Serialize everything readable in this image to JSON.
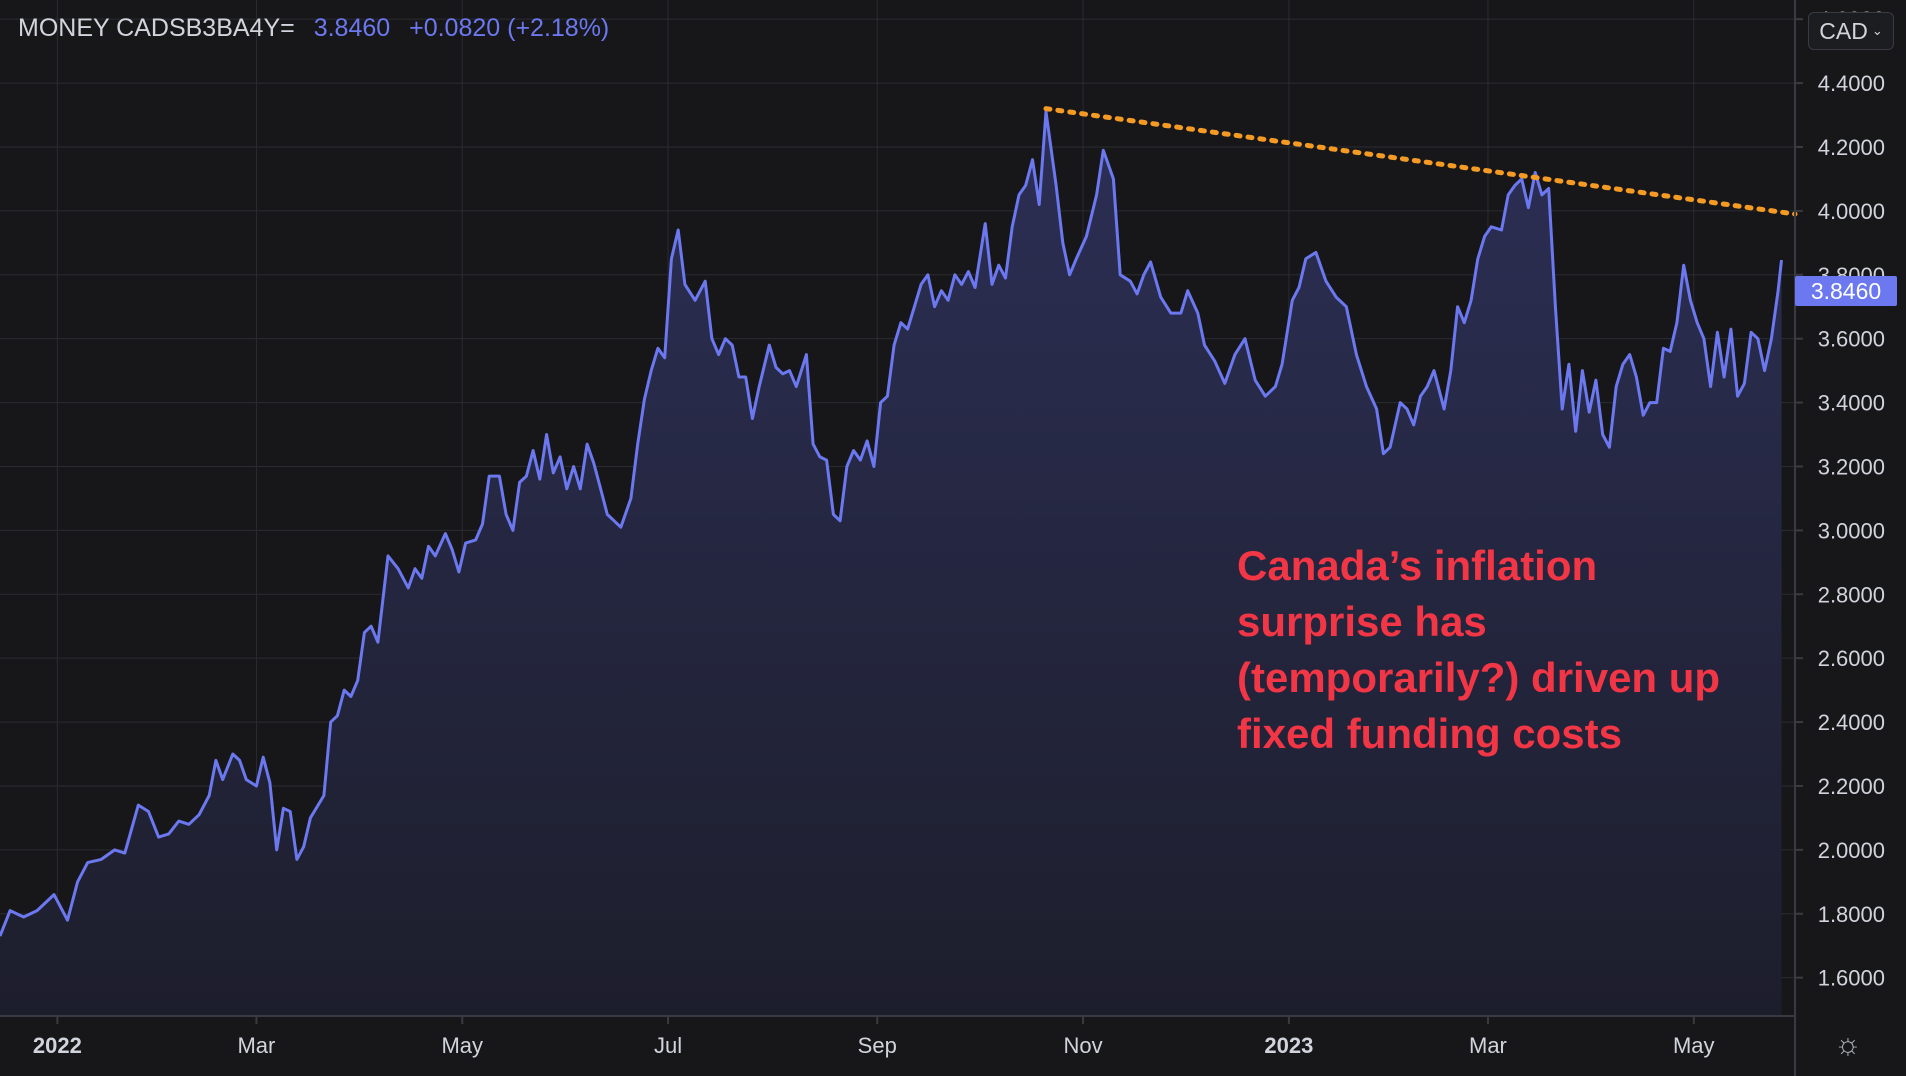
{
  "header": {
    "symbol": "MONEY CADSB3BA4Y=",
    "last": "3.8460",
    "change": "+0.0820 (+2.18%)"
  },
  "currency_button": {
    "label": "CAD"
  },
  "price_badge": {
    "label": "3.8460"
  },
  "settings": {
    "icon": "settings-gear-icon"
  },
  "annotation": {
    "text": "Canada’s inflation surprise has (temporarily?) driven up fixed funding costs"
  },
  "colors": {
    "background": "#171719",
    "line": "#6b78f0",
    "area_top": "#2c2f55",
    "area_bottom": "#1d1e2c",
    "trend": "#f59a23",
    "annotation": "#f23645",
    "grid": "#2b2c31",
    "axis_text": "#d1d4dc"
  },
  "chart_data": {
    "type": "area",
    "x_start": "2021-12-15",
    "x_end": "2023-05-31",
    "ylim": [
      1.48,
      4.66
    ],
    "grid": true,
    "y_ticks": [
      "1.6000",
      "1.8000",
      "2.0000",
      "2.2000",
      "2.4000",
      "2.6000",
      "2.8000",
      "3.0000",
      "3.2000",
      "3.4000",
      "3.6000",
      "3.8000",
      "4.0000",
      "4.2000",
      "4.4000",
      "4.6000"
    ],
    "x_ticks": [
      {
        "date": "2022-01-01",
        "label": "2022"
      },
      {
        "date": "2022-03-01",
        "label": "Mar"
      },
      {
        "date": "2022-05-01",
        "label": "May"
      },
      {
        "date": "2022-07-01",
        "label": "Jul"
      },
      {
        "date": "2022-09-01",
        "label": "Sep"
      },
      {
        "date": "2022-11-01",
        "label": "Nov"
      },
      {
        "date": "2023-01-01",
        "label": "2023"
      },
      {
        "date": "2023-03-01",
        "label": "Mar"
      },
      {
        "date": "2023-05-01",
        "label": "May"
      }
    ],
    "series": [
      {
        "points": [
          [
            "2021-12-15",
            1.73
          ],
          [
            "2021-12-18",
            1.81
          ],
          [
            "2021-12-22",
            1.79
          ],
          [
            "2021-12-26",
            1.81
          ],
          [
            "2021-12-31",
            1.86
          ],
          [
            "2022-01-04",
            1.78
          ],
          [
            "2022-01-07",
            1.9
          ],
          [
            "2022-01-10",
            1.96
          ],
          [
            "2022-01-14",
            1.97
          ],
          [
            "2022-01-18",
            2.0
          ],
          [
            "2022-01-21",
            1.99
          ],
          [
            "2022-01-25",
            2.14
          ],
          [
            "2022-01-28",
            2.12
          ],
          [
            "2022-01-31",
            2.04
          ],
          [
            "2022-02-03",
            2.05
          ],
          [
            "2022-02-06",
            2.09
          ],
          [
            "2022-02-09",
            2.08
          ],
          [
            "2022-02-12",
            2.11
          ],
          [
            "2022-02-15",
            2.17
          ],
          [
            "2022-02-17",
            2.28
          ],
          [
            "2022-02-19",
            2.22
          ],
          [
            "2022-02-22",
            2.3
          ],
          [
            "2022-02-24",
            2.28
          ],
          [
            "2022-02-26",
            2.22
          ],
          [
            "2022-03-01",
            2.2
          ],
          [
            "2022-03-03",
            2.29
          ],
          [
            "2022-03-05",
            2.21
          ],
          [
            "2022-03-07",
            2.0
          ],
          [
            "2022-03-09",
            2.13
          ],
          [
            "2022-03-11",
            2.12
          ],
          [
            "2022-03-13",
            1.97
          ],
          [
            "2022-03-15",
            2.01
          ],
          [
            "2022-03-17",
            2.1
          ],
          [
            "2022-03-21",
            2.17
          ],
          [
            "2022-03-23",
            2.4
          ],
          [
            "2022-03-25",
            2.42
          ],
          [
            "2022-03-27",
            2.5
          ],
          [
            "2022-03-29",
            2.48
          ],
          [
            "2022-03-31",
            2.53
          ],
          [
            "2022-04-02",
            2.68
          ],
          [
            "2022-04-04",
            2.7
          ],
          [
            "2022-04-06",
            2.65
          ],
          [
            "2022-04-09",
            2.92
          ],
          [
            "2022-04-12",
            2.88
          ],
          [
            "2022-04-15",
            2.82
          ],
          [
            "2022-04-17",
            2.88
          ],
          [
            "2022-04-19",
            2.85
          ],
          [
            "2022-04-21",
            2.95
          ],
          [
            "2022-04-23",
            2.92
          ],
          [
            "2022-04-26",
            2.99
          ],
          [
            "2022-04-28",
            2.94
          ],
          [
            "2022-04-30",
            2.87
          ],
          [
            "2022-05-02",
            2.96
          ],
          [
            "2022-05-05",
            2.97
          ],
          [
            "2022-05-07",
            3.02
          ],
          [
            "2022-05-09",
            3.17
          ],
          [
            "2022-05-12",
            3.17
          ],
          [
            "2022-05-14",
            3.05
          ],
          [
            "2022-05-16",
            3.0
          ],
          [
            "2022-05-18",
            3.15
          ],
          [
            "2022-05-20",
            3.17
          ],
          [
            "2022-05-22",
            3.25
          ],
          [
            "2022-05-24",
            3.16
          ],
          [
            "2022-05-26",
            3.3
          ],
          [
            "2022-05-28",
            3.18
          ],
          [
            "2022-05-30",
            3.23
          ],
          [
            "2022-06-01",
            3.13
          ],
          [
            "2022-06-03",
            3.2
          ],
          [
            "2022-06-05",
            3.13
          ],
          [
            "2022-06-07",
            3.27
          ],
          [
            "2022-06-09",
            3.21
          ],
          [
            "2022-06-11",
            3.13
          ],
          [
            "2022-06-13",
            3.05
          ],
          [
            "2022-06-15",
            3.03
          ],
          [
            "2022-06-17",
            3.01
          ],
          [
            "2022-06-20",
            3.1
          ],
          [
            "2022-06-22",
            3.27
          ],
          [
            "2022-06-24",
            3.41
          ],
          [
            "2022-06-26",
            3.5
          ],
          [
            "2022-06-28",
            3.57
          ],
          [
            "2022-06-30",
            3.54
          ],
          [
            "2022-07-02",
            3.85
          ],
          [
            "2022-07-04",
            3.94
          ],
          [
            "2022-07-06",
            3.77
          ],
          [
            "2022-07-09",
            3.72
          ],
          [
            "2022-07-12",
            3.78
          ],
          [
            "2022-07-14",
            3.6
          ],
          [
            "2022-07-16",
            3.55
          ],
          [
            "2022-07-18",
            3.6
          ],
          [
            "2022-07-20",
            3.58
          ],
          [
            "2022-07-22",
            3.48
          ],
          [
            "2022-07-24",
            3.48
          ],
          [
            "2022-07-26",
            3.35
          ],
          [
            "2022-07-28",
            3.45
          ],
          [
            "2022-07-31",
            3.58
          ],
          [
            "2022-08-02",
            3.51
          ],
          [
            "2022-08-04",
            3.49
          ],
          [
            "2022-08-06",
            3.5
          ],
          [
            "2022-08-08",
            3.45
          ],
          [
            "2022-08-11",
            3.55
          ],
          [
            "2022-08-13",
            3.27
          ],
          [
            "2022-08-15",
            3.23
          ],
          [
            "2022-08-17",
            3.22
          ],
          [
            "2022-08-19",
            3.05
          ],
          [
            "2022-08-21",
            3.03
          ],
          [
            "2022-08-23",
            3.2
          ],
          [
            "2022-08-25",
            3.25
          ],
          [
            "2022-08-27",
            3.22
          ],
          [
            "2022-08-29",
            3.28
          ],
          [
            "2022-08-31",
            3.2
          ],
          [
            "2022-09-02",
            3.4
          ],
          [
            "2022-09-04",
            3.42
          ],
          [
            "2022-09-06",
            3.58
          ],
          [
            "2022-09-08",
            3.65
          ],
          [
            "2022-09-10",
            3.63
          ],
          [
            "2022-09-12",
            3.7
          ],
          [
            "2022-09-14",
            3.77
          ],
          [
            "2022-09-16",
            3.8
          ],
          [
            "2022-09-18",
            3.7
          ],
          [
            "2022-09-20",
            3.75
          ],
          [
            "2022-09-22",
            3.72
          ],
          [
            "2022-09-24",
            3.8
          ],
          [
            "2022-09-26",
            3.77
          ],
          [
            "2022-09-28",
            3.81
          ],
          [
            "2022-09-30",
            3.76
          ],
          [
            "2022-10-03",
            3.96
          ],
          [
            "2022-10-05",
            3.77
          ],
          [
            "2022-10-07",
            3.83
          ],
          [
            "2022-10-09",
            3.79
          ],
          [
            "2022-10-11",
            3.95
          ],
          [
            "2022-10-13",
            4.05
          ],
          [
            "2022-10-15",
            4.08
          ],
          [
            "2022-10-17",
            4.16
          ],
          [
            "2022-10-19",
            4.02
          ],
          [
            "2022-10-21",
            4.31
          ],
          [
            "2022-10-24",
            4.08
          ],
          [
            "2022-10-26",
            3.9
          ],
          [
            "2022-10-28",
            3.8
          ],
          [
            "2022-10-30",
            3.85
          ],
          [
            "2022-11-02",
            3.92
          ],
          [
            "2022-11-05",
            4.05
          ],
          [
            "2022-11-07",
            4.19
          ],
          [
            "2022-11-10",
            4.1
          ],
          [
            "2022-11-12",
            3.8
          ],
          [
            "2022-11-15",
            3.78
          ],
          [
            "2022-11-17",
            3.74
          ],
          [
            "2022-11-19",
            3.8
          ],
          [
            "2022-11-21",
            3.84
          ],
          [
            "2022-11-24",
            3.73
          ],
          [
            "2022-11-27",
            3.68
          ],
          [
            "2022-11-30",
            3.68
          ],
          [
            "2022-12-02",
            3.75
          ],
          [
            "2022-12-05",
            3.68
          ],
          [
            "2022-12-07",
            3.58
          ],
          [
            "2022-12-10",
            3.53
          ],
          [
            "2022-12-13",
            3.46
          ],
          [
            "2022-12-16",
            3.55
          ],
          [
            "2022-12-19",
            3.6
          ],
          [
            "2022-12-22",
            3.47
          ],
          [
            "2022-12-25",
            3.42
          ],
          [
            "2022-12-28",
            3.45
          ],
          [
            "2022-12-30",
            3.52
          ],
          [
            "2023-01-02",
            3.72
          ],
          [
            "2023-01-04",
            3.76
          ],
          [
            "2023-01-06",
            3.85
          ],
          [
            "2023-01-09",
            3.87
          ],
          [
            "2023-01-12",
            3.78
          ],
          [
            "2023-01-15",
            3.73
          ],
          [
            "2023-01-18",
            3.7
          ],
          [
            "2023-01-21",
            3.55
          ],
          [
            "2023-01-24",
            3.45
          ],
          [
            "2023-01-27",
            3.38
          ],
          [
            "2023-01-29",
            3.24
          ],
          [
            "2023-01-31",
            3.26
          ],
          [
            "2023-02-03",
            3.4
          ],
          [
            "2023-02-05",
            3.38
          ],
          [
            "2023-02-07",
            3.33
          ],
          [
            "2023-02-09",
            3.42
          ],
          [
            "2023-02-11",
            3.45
          ],
          [
            "2023-02-13",
            3.5
          ],
          [
            "2023-02-16",
            3.38
          ],
          [
            "2023-02-18",
            3.5
          ],
          [
            "2023-02-20",
            3.7
          ],
          [
            "2023-02-22",
            3.65
          ],
          [
            "2023-02-24",
            3.72
          ],
          [
            "2023-02-26",
            3.85
          ],
          [
            "2023-02-28",
            3.92
          ],
          [
            "2023-03-02",
            3.95
          ],
          [
            "2023-03-05",
            3.94
          ],
          [
            "2023-03-07",
            4.05
          ],
          [
            "2023-03-09",
            4.08
          ],
          [
            "2023-03-11",
            4.1
          ],
          [
            "2023-03-13",
            4.01
          ],
          [
            "2023-03-15",
            4.12
          ],
          [
            "2023-03-17",
            4.05
          ],
          [
            "2023-03-19",
            4.07
          ],
          [
            "2023-03-21",
            3.7
          ],
          [
            "2023-03-23",
            3.38
          ],
          [
            "2023-03-25",
            3.52
          ],
          [
            "2023-03-27",
            3.31
          ],
          [
            "2023-03-29",
            3.5
          ],
          [
            "2023-03-31",
            3.37
          ],
          [
            "2023-04-02",
            3.47
          ],
          [
            "2023-04-04",
            3.3
          ],
          [
            "2023-04-06",
            3.26
          ],
          [
            "2023-04-08",
            3.45
          ],
          [
            "2023-04-10",
            3.52
          ],
          [
            "2023-04-12",
            3.55
          ],
          [
            "2023-04-14",
            3.48
          ],
          [
            "2023-04-16",
            3.36
          ],
          [
            "2023-04-18",
            3.4
          ],
          [
            "2023-04-20",
            3.4
          ],
          [
            "2023-04-22",
            3.57
          ],
          [
            "2023-04-24",
            3.56
          ],
          [
            "2023-04-26",
            3.65
          ],
          [
            "2023-04-28",
            3.83
          ],
          [
            "2023-04-30",
            3.72
          ],
          [
            "2023-05-02",
            3.65
          ],
          [
            "2023-05-04",
            3.6
          ],
          [
            "2023-05-06",
            3.45
          ],
          [
            "2023-05-08",
            3.62
          ],
          [
            "2023-05-10",
            3.48
          ],
          [
            "2023-05-12",
            3.63
          ],
          [
            "2023-05-14",
            3.42
          ],
          [
            "2023-05-16",
            3.46
          ],
          [
            "2023-05-18",
            3.62
          ],
          [
            "2023-05-20",
            3.6
          ],
          [
            "2023-05-22",
            3.5
          ],
          [
            "2023-05-24",
            3.6
          ],
          [
            "2023-05-26",
            3.75
          ],
          [
            "2023-05-27",
            3.846
          ]
        ]
      }
    ],
    "trendline": {
      "from": [
        "2022-10-21",
        4.32
      ],
      "to": [
        "2023-05-31",
        3.99
      ]
    }
  }
}
